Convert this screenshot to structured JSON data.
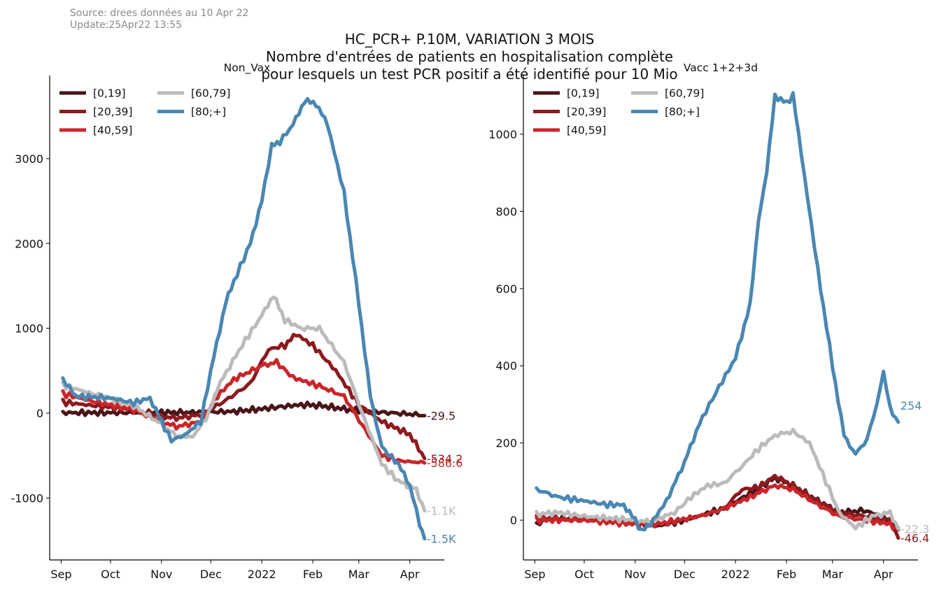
{
  "source_line": "Source: drees données au 10 Apr 22",
  "update_line": "Update:25Apr22 13:55",
  "title_lines": [
    "HC_PCR+ P.10M, VARIATION 3 MOIS",
    "Nombre d'entrées de patients en hospitalisation complète",
    "pour lesquels un test PCR positif a été identifié pour 10 Mio"
  ],
  "colors": {
    "0_19": "#4a1418",
    "20_39": "#8c1a1e",
    "40_59": "#c9262a",
    "60_79": "#bbbbbb",
    "80_plus": "#4a87b2"
  },
  "chart_data": [
    {
      "type": "line",
      "title": "Non_Vax",
      "x_ticks": [
        "Sep",
        "Oct",
        "Nov",
        "Dec",
        "2022",
        "Feb",
        "Mar",
        "Apr"
      ],
      "xlim": [
        "2021-08-25",
        "2022-04-22"
      ],
      "y_ticks": [
        "-1000",
        "0",
        "1000",
        "2000",
        "3000"
      ],
      "y_tick_values": [
        -1000,
        0,
        1000,
        2000,
        3000
      ],
      "ylim": [
        -1730,
        3980
      ],
      "legend": "top-left",
      "series": [
        {
          "name": "[0,19]",
          "color_key": "0_19",
          "end_label": "-29.5",
          "points": [
            [
              "2021-09-02",
              5
            ],
            [
              "2021-10-01",
              5
            ],
            [
              "2021-11-01",
              8
            ],
            [
              "2021-11-20",
              10
            ],
            [
              "2021-12-15",
              20
            ],
            [
              "2022-01-01",
              50
            ],
            [
              "2022-01-15",
              80
            ],
            [
              "2022-01-25",
              100
            ],
            [
              "2022-02-05",
              90
            ],
            [
              "2022-02-20",
              50
            ],
            [
              "2022-03-01",
              30
            ],
            [
              "2022-03-15",
              10
            ],
            [
              "2022-04-01",
              -10
            ],
            [
              "2022-04-10",
              -29.5
            ]
          ]
        },
        {
          "name": "[20,39]",
          "color_key": "20_39",
          "end_label": "-534.2",
          "points": [
            [
              "2021-09-02",
              130
            ],
            [
              "2021-09-20",
              90
            ],
            [
              "2021-10-15",
              40
            ],
            [
              "2021-11-01",
              -40
            ],
            [
              "2021-11-10",
              -60
            ],
            [
              "2021-11-25",
              -20
            ],
            [
              "2021-12-10",
              150
            ],
            [
              "2021-12-25",
              350
            ],
            [
              "2022-01-05",
              750
            ],
            [
              "2022-01-15",
              800
            ],
            [
              "2022-01-22",
              930
            ],
            [
              "2022-02-01",
              800
            ],
            [
              "2022-02-15",
              500
            ],
            [
              "2022-03-01",
              100
            ],
            [
              "2022-03-15",
              -100
            ],
            [
              "2022-04-01",
              -250
            ],
            [
              "2022-04-10",
              -534.2
            ]
          ]
        },
        {
          "name": "[40,59]",
          "color_key": "40_59",
          "end_label": "-586.6",
          "points": [
            [
              "2021-09-02",
              230
            ],
            [
              "2021-09-20",
              140
            ],
            [
              "2021-10-15",
              40
            ],
            [
              "2021-11-01",
              -100
            ],
            [
              "2021-11-10",
              -160
            ],
            [
              "2021-11-25",
              -100
            ],
            [
              "2021-12-05",
              200
            ],
            [
              "2021-12-15",
              400
            ],
            [
              "2022-01-01",
              560
            ],
            [
              "2022-01-10",
              600
            ],
            [
              "2022-01-20",
              420
            ],
            [
              "2022-02-05",
              320
            ],
            [
              "2022-02-20",
              200
            ],
            [
              "2022-03-05",
              -200
            ],
            [
              "2022-03-15",
              -500
            ],
            [
              "2022-03-25",
              -560
            ],
            [
              "2022-04-10",
              -586.6
            ]
          ]
        },
        {
          "name": "[60,79]",
          "color_key": "60_79",
          "end_label": "-1.1K",
          "points": [
            [
              "2021-09-02",
              330
            ],
            [
              "2021-09-20",
              230
            ],
            [
              "2021-10-15",
              90
            ],
            [
              "2021-11-01",
              -130
            ],
            [
              "2021-11-10",
              -270
            ],
            [
              "2021-11-20",
              -280
            ],
            [
              "2021-11-30",
              0
            ],
            [
              "2021-12-05",
              300
            ],
            [
              "2021-12-20",
              800
            ],
            [
              "2022-01-01",
              1150
            ],
            [
              "2022-01-08",
              1390
            ],
            [
              "2022-01-15",
              1100
            ],
            [
              "2022-01-25",
              1000
            ],
            [
              "2022-02-05",
              1000
            ],
            [
              "2022-02-20",
              600
            ],
            [
              "2022-03-05",
              -100
            ],
            [
              "2022-03-15",
              -600
            ],
            [
              "2022-03-25",
              -800
            ],
            [
              "2022-04-05",
              -900
            ],
            [
              "2022-04-10",
              -1150
            ]
          ]
        },
        {
          "name": "[80;+]",
          "color_key": "80_plus",
          "end_label": "-1.5K",
          "points": [
            [
              "2021-09-02",
              400
            ],
            [
              "2021-09-10",
              200
            ],
            [
              "2021-10-01",
              180
            ],
            [
              "2021-10-15",
              120
            ],
            [
              "2021-10-25",
              180
            ],
            [
              "2021-11-01",
              -100
            ],
            [
              "2021-11-07",
              -320
            ],
            [
              "2021-11-15",
              -260
            ],
            [
              "2021-11-25",
              -100
            ],
            [
              "2021-12-01",
              500
            ],
            [
              "2021-12-10",
              1300
            ],
            [
              "2021-12-15",
              1550
            ],
            [
              "2021-12-25",
              2000
            ],
            [
              "2022-01-01",
              2500
            ],
            [
              "2022-01-07",
              3150
            ],
            [
              "2022-01-12",
              3200
            ],
            [
              "2022-01-20",
              3400
            ],
            [
              "2022-01-27",
              3680
            ],
            [
              "2022-02-03",
              3650
            ],
            [
              "2022-02-10",
              3400
            ],
            [
              "2022-02-20",
              2600
            ],
            [
              "2022-03-01",
              1300
            ],
            [
              "2022-03-08",
              200
            ],
            [
              "2022-03-15",
              -400
            ],
            [
              "2022-03-25",
              -600
            ],
            [
              "2022-04-01",
              -850
            ],
            [
              "2022-04-07",
              -1300
            ],
            [
              "2022-04-10",
              -1480
            ]
          ]
        }
      ]
    },
    {
      "type": "line",
      "title": "Vacc 1+2+3d",
      "x_ticks": [
        "Sep",
        "Oct",
        "Nov",
        "Dec",
        "2022",
        "Feb",
        "Mar",
        "Apr"
      ],
      "xlim": [
        "2021-08-25",
        "2022-04-22"
      ],
      "y_ticks": [
        "0",
        "200",
        "400",
        "600",
        "800",
        "1000"
      ],
      "y_tick_values": [
        0,
        200,
        400,
        600,
        800,
        1000
      ],
      "ylim": [
        -103,
        1152
      ],
      "legend": "top-left",
      "series": [
        {
          "name": "[0,19]",
          "color_key": "0_19",
          "end_label": "",
          "points": [
            [
              "2021-09-02",
              -10
            ],
            [
              "2021-09-10",
              5
            ],
            [
              "2021-10-15",
              0
            ],
            [
              "2021-11-01",
              -10
            ],
            [
              "2021-11-15",
              -15
            ],
            [
              "2021-12-01",
              0
            ],
            [
              "2021-12-25",
              30
            ],
            [
              "2022-01-10",
              70
            ],
            [
              "2022-01-25",
              110
            ],
            [
              "2022-02-05",
              90
            ],
            [
              "2022-02-20",
              50
            ],
            [
              "2022-03-05",
              20
            ],
            [
              "2022-03-20",
              25
            ],
            [
              "2022-04-01",
              10
            ],
            [
              "2022-04-10",
              -20
            ]
          ]
        },
        {
          "name": "[20,39]",
          "color_key": "20_39",
          "end_label": "-46.4",
          "points": [
            [
              "2021-09-02",
              5
            ],
            [
              "2021-10-01",
              0
            ],
            [
              "2021-11-01",
              -10
            ],
            [
              "2021-11-15",
              -10
            ],
            [
              "2021-12-10",
              10
            ],
            [
              "2021-12-25",
              30
            ],
            [
              "2022-01-05",
              80
            ],
            [
              "2022-01-15",
              85
            ],
            [
              "2022-01-25",
              115
            ],
            [
              "2022-02-05",
              90
            ],
            [
              "2022-02-20",
              50
            ],
            [
              "2022-03-05",
              20
            ],
            [
              "2022-03-20",
              10
            ],
            [
              "2022-04-05",
              0
            ],
            [
              "2022-04-10",
              -46.4
            ]
          ]
        },
        {
          "name": "[40,59]",
          "color_key": "40_59",
          "end_label": "",
          "points": [
            [
              "2021-09-02",
              0
            ],
            [
              "2021-10-01",
              0
            ],
            [
              "2021-11-01",
              -10
            ],
            [
              "2021-11-15",
              -10
            ],
            [
              "2021-12-10",
              10
            ],
            [
              "2021-12-25",
              30
            ],
            [
              "2022-01-10",
              60
            ],
            [
              "2022-01-25",
              90
            ],
            [
              "2022-02-05",
              80
            ],
            [
              "2022-02-20",
              40
            ],
            [
              "2022-03-05",
              10
            ],
            [
              "2022-03-20",
              0
            ],
            [
              "2022-04-05",
              -10
            ],
            [
              "2022-04-10",
              -25
            ]
          ]
        },
        {
          "name": "[60,79]",
          "color_key": "60_79",
          "end_label": "-22.3",
          "points": [
            [
              "2021-09-02",
              15
            ],
            [
              "2021-09-15",
              20
            ],
            [
              "2021-10-01",
              10
            ],
            [
              "2021-11-01",
              0
            ],
            [
              "2021-11-10",
              -5
            ],
            [
              "2021-11-25",
              20
            ],
            [
              "2021-12-05",
              60
            ],
            [
              "2021-12-15",
              90
            ],
            [
              "2021-12-25",
              95
            ],
            [
              "2022-01-05",
              140
            ],
            [
              "2022-01-15",
              185
            ],
            [
              "2022-01-25",
              220
            ],
            [
              "2022-02-05",
              230
            ],
            [
              "2022-02-15",
              200
            ],
            [
              "2022-02-25",
              100
            ],
            [
              "2022-03-05",
              20
            ],
            [
              "2022-03-15",
              -20
            ],
            [
              "2022-03-25",
              10
            ],
            [
              "2022-04-05",
              20
            ],
            [
              "2022-04-10",
              -22.3
            ]
          ]
        },
        {
          "name": "[80;+]",
          "color_key": "80_plus",
          "end_label": "254",
          "points": [
            [
              "2021-09-02",
              80
            ],
            [
              "2021-09-15",
              60
            ],
            [
              "2021-10-01",
              50
            ],
            [
              "2021-10-15",
              40
            ],
            [
              "2021-10-25",
              40
            ],
            [
              "2021-11-01",
              0
            ],
            [
              "2021-11-05",
              -30
            ],
            [
              "2021-11-12",
              0
            ],
            [
              "2021-11-20",
              50
            ],
            [
              "2021-12-01",
              150
            ],
            [
              "2021-12-10",
              250
            ],
            [
              "2021-12-20",
              330
            ],
            [
              "2022-01-01",
              420
            ],
            [
              "2022-01-10",
              560
            ],
            [
              "2022-01-15",
              780
            ],
            [
              "2022-01-20",
              900
            ],
            [
              "2022-01-25",
              1100
            ],
            [
              "2022-02-01",
              1080
            ],
            [
              "2022-02-05",
              1100
            ],
            [
              "2022-02-10",
              950
            ],
            [
              "2022-02-20",
              650
            ],
            [
              "2022-03-01",
              400
            ],
            [
              "2022-03-08",
              220
            ],
            [
              "2022-03-15",
              170
            ],
            [
              "2022-03-22",
              210
            ],
            [
              "2022-03-28",
              300
            ],
            [
              "2022-04-01",
              385
            ],
            [
              "2022-04-05",
              290
            ],
            [
              "2022-04-10",
              254
            ]
          ]
        }
      ]
    }
  ]
}
